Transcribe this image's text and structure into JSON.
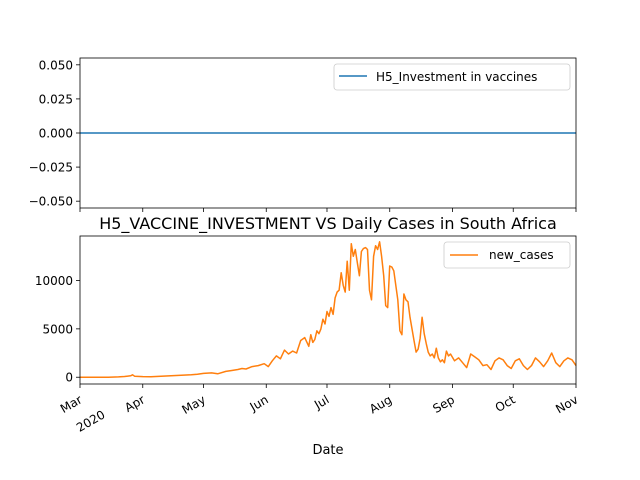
{
  "chart_data": [
    {
      "type": "line",
      "title": "",
      "xlabel": "",
      "ylabel": "",
      "ylim": [
        -0.055,
        0.055
      ],
      "y_ticks": [
        0.05,
        0.025,
        0.0,
        -0.025,
        -0.05
      ],
      "y_tick_labels": [
        "0.050",
        "0.025",
        "0.000",
        "−0.025",
        "−0.050"
      ],
      "x_range": [
        "2020-03-01",
        "2020-11-01"
      ],
      "legend_position": "upper right",
      "grid": false,
      "series": [
        {
          "name": "H5_Investment in vaccines",
          "color": "#1f77b4",
          "x": [
            "2020-03-01",
            "2020-11-01"
          ],
          "values": [
            0,
            0
          ]
        }
      ]
    },
    {
      "type": "line",
      "title": "H5_VACCINE_INVESTMENT VS Daily Cases in South Africa",
      "xlabel": "Date",
      "ylabel": "",
      "ylim": [
        -700,
        14600
      ],
      "y_ticks": [
        0,
        5000,
        10000
      ],
      "y_tick_labels": [
        "0",
        "5000",
        "10000"
      ],
      "x_range": [
        "2020-03-01",
        "2020-11-01"
      ],
      "x_ticks": [
        "2020-03-01",
        "2020-04-01",
        "2020-05-01",
        "2020-06-01",
        "2020-07-01",
        "2020-08-01",
        "2020-09-01",
        "2020-10-01",
        "2020-11-01"
      ],
      "x_tick_labels": [
        "Mar",
        "Apr",
        "May",
        "Jun",
        "Jul",
        "Aug",
        "Sep",
        "Oct",
        "Nov"
      ],
      "x_tick_sublabels": [
        "2020",
        "",
        "",
        "",
        "",
        "",
        "",
        "",
        ""
      ],
      "legend_position": "upper right",
      "grid": false,
      "series": [
        {
          "name": "new_cases",
          "color": "#ff7f0e",
          "x": [
            "2020-03-01",
            "2020-03-15",
            "2020-03-20",
            "2020-03-23",
            "2020-03-26",
            "2020-03-27",
            "2020-03-28",
            "2020-04-01",
            "2020-04-05",
            "2020-04-10",
            "2020-04-15",
            "2020-04-20",
            "2020-04-25",
            "2020-04-28",
            "2020-05-01",
            "2020-05-05",
            "2020-05-08",
            "2020-05-12",
            "2020-05-15",
            "2020-05-18",
            "2020-05-20",
            "2020-05-22",
            "2020-05-25",
            "2020-05-28",
            "2020-05-31",
            "2020-06-02",
            "2020-06-04",
            "2020-06-06",
            "2020-06-08",
            "2020-06-10",
            "2020-06-12",
            "2020-06-14",
            "2020-06-16",
            "2020-06-18",
            "2020-06-20",
            "2020-06-22",
            "2020-06-23",
            "2020-06-24",
            "2020-06-25",
            "2020-06-26",
            "2020-06-27",
            "2020-06-28",
            "2020-06-29",
            "2020-06-30",
            "2020-07-01",
            "2020-07-02",
            "2020-07-03",
            "2020-07-04",
            "2020-07-05",
            "2020-07-06",
            "2020-07-07",
            "2020-07-08",
            "2020-07-09",
            "2020-07-10",
            "2020-07-11",
            "2020-07-12",
            "2020-07-13",
            "2020-07-14",
            "2020-07-15",
            "2020-07-16",
            "2020-07-17",
            "2020-07-18",
            "2020-07-19",
            "2020-07-20",
            "2020-07-21",
            "2020-07-22",
            "2020-07-23",
            "2020-07-24",
            "2020-07-25",
            "2020-07-26",
            "2020-07-27",
            "2020-07-28",
            "2020-07-29",
            "2020-07-30",
            "2020-07-31",
            "2020-08-01",
            "2020-08-02",
            "2020-08-03",
            "2020-08-04",
            "2020-08-05",
            "2020-08-06",
            "2020-08-07",
            "2020-08-08",
            "2020-08-09",
            "2020-08-10",
            "2020-08-11",
            "2020-08-12",
            "2020-08-13",
            "2020-08-14",
            "2020-08-15",
            "2020-08-16",
            "2020-08-17",
            "2020-08-18",
            "2020-08-19",
            "2020-08-20",
            "2020-08-21",
            "2020-08-22",
            "2020-08-23",
            "2020-08-24",
            "2020-08-25",
            "2020-08-26",
            "2020-08-27",
            "2020-08-28",
            "2020-08-29",
            "2020-08-30",
            "2020-08-31",
            "2020-09-02",
            "2020-09-04",
            "2020-09-06",
            "2020-09-08",
            "2020-09-10",
            "2020-09-12",
            "2020-09-14",
            "2020-09-16",
            "2020-09-18",
            "2020-09-20",
            "2020-09-22",
            "2020-09-24",
            "2020-09-26",
            "2020-09-28",
            "2020-09-30",
            "2020-10-02",
            "2020-10-04",
            "2020-10-06",
            "2020-10-08",
            "2020-10-10",
            "2020-10-12",
            "2020-10-14",
            "2020-10-16",
            "2020-10-18",
            "2020-10-20",
            "2020-10-22",
            "2020-10-24",
            "2020-10-26",
            "2020-10-28",
            "2020-10-30",
            "2020-11-01"
          ],
          "values": [
            0,
            0,
            30,
            80,
            150,
            250,
            100,
            70,
            50,
            100,
            150,
            200,
            250,
            300,
            400,
            450,
            350,
            600,
            700,
            800,
            900,
            850,
            1100,
            1200,
            1400,
            1100,
            1700,
            2200,
            1900,
            2800,
            2400,
            2700,
            2500,
            3800,
            4100,
            3200,
            4400,
            3600,
            3900,
            4800,
            4500,
            5000,
            6000,
            5500,
            6800,
            6300,
            7200,
            6500,
            8200,
            8800,
            9000,
            10800,
            9500,
            8800,
            12000,
            9000,
            13800,
            12500,
            13200,
            11800,
            10500,
            13000,
            13300,
            13400,
            13200,
            9000,
            8000,
            12500,
            13600,
            13200,
            14000,
            12500,
            10500,
            7400,
            7200,
            11500,
            11400,
            11000,
            9500,
            8000,
            4800,
            4400,
            8600,
            8000,
            7800,
            6200,
            5000,
            3800,
            2600,
            2900,
            4000,
            6200,
            4500,
            3500,
            2600,
            2200,
            2400,
            2000,
            3000,
            2000,
            1600,
            1800,
            1500,
            2700,
            2200,
            2400,
            1700,
            2000,
            1500,
            1000,
            2400,
            2100,
            1800,
            1200,
            1300,
            800,
            1700,
            2000,
            1800,
            1200,
            900,
            1700,
            1900,
            1200,
            800,
            1200,
            2000,
            1600,
            1100,
            1700,
            2500,
            1500,
            1100,
            1700,
            2000,
            1800,
            1200
          ]
        }
      ]
    }
  ]
}
